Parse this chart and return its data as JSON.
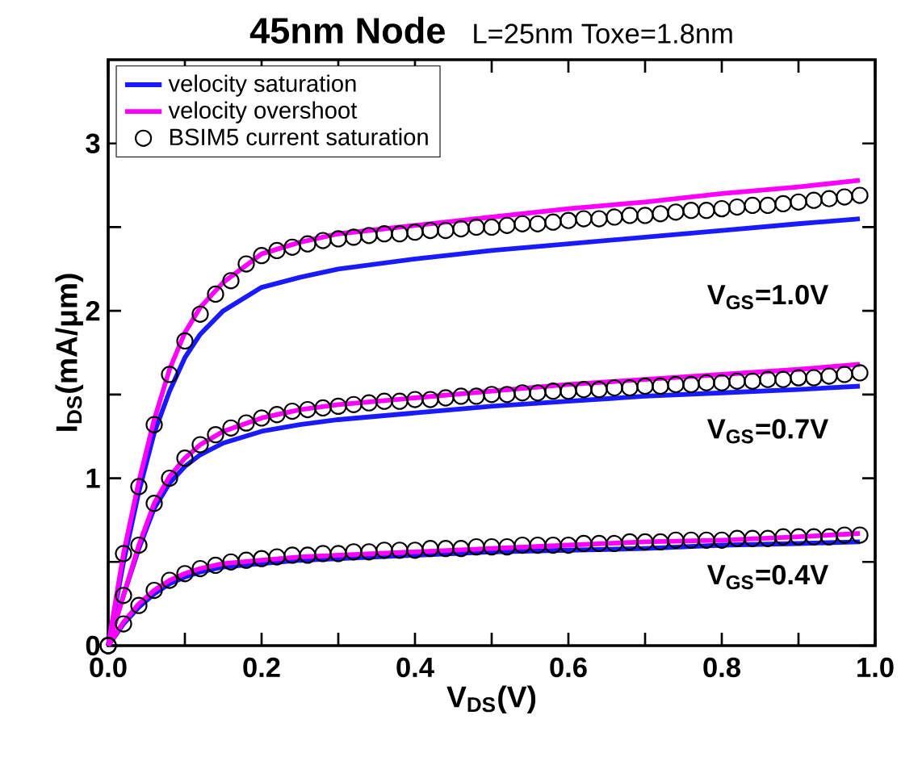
{
  "chart_data": {
    "type": "line",
    "title": "45nm Node",
    "subtitle": "L=25nm  Toxe=1.8nm",
    "xlabel": "V$_{DS}$(V)",
    "ylabel": "I$_{DS}$(mA/μm)",
    "xlim": [
      0,
      1
    ],
    "ylim": [
      0,
      3.5
    ],
    "xticks": [
      {
        "value": 0,
        "label": "0.0"
      },
      {
        "value": 0.1,
        "label": null
      },
      0.2,
      {
        "value": 0.3,
        "label": null
      },
      0.4,
      {
        "value": 0.5,
        "label": null
      },
      0.6,
      {
        "value": 0.7,
        "label": null
      },
      0.8,
      {
        "value": 0.9,
        "label": null
      },
      {
        "value": 1,
        "label": "1.0"
      }
    ],
    "yticks": [
      0,
      {
        "value": 0.5,
        "label": null
      },
      1,
      {
        "value": 1.5,
        "label": null
      },
      2,
      {
        "value": 2.5,
        "label": null
      },
      3
    ],
    "legend": "top left",
    "series": [
      {
        "name": "velocity saturation",
        "color": "#1a1aff",
        "x": [
          0,
          0.02,
          0.04,
          0.06,
          0.08,
          0.1,
          0.12,
          0.15,
          0.2,
          0.25,
          0.3,
          0.4,
          0.5,
          0.6,
          0.7,
          0.8,
          0.9,
          0.98
        ],
        "values": [
          0,
          0.5,
          0.92,
          1.27,
          1.52,
          1.72,
          1.86,
          2.0,
          2.14,
          2.2,
          2.25,
          2.31,
          2.36,
          2.4,
          2.44,
          2.48,
          2.52,
          2.55
        ]
      },
      {
        "name": "velocity overshoot",
        "color": "#ff00ff",
        "x": [
          0,
          0.02,
          0.04,
          0.06,
          0.08,
          0.1,
          0.12,
          0.15,
          0.2,
          0.25,
          0.3,
          0.4,
          0.5,
          0.6,
          0.7,
          0.8,
          0.9,
          0.98
        ],
        "values": [
          0,
          0.55,
          0.98,
          1.35,
          1.65,
          1.87,
          2.02,
          2.17,
          2.34,
          2.41,
          2.46,
          2.51,
          2.56,
          2.61,
          2.65,
          2.7,
          2.74,
          2.78
        ]
      },
      {
        "name": "BSIM5 current saturation",
        "type": "scatter",
        "marker": "circle",
        "color": "#000000",
        "x": [
          0,
          0.02,
          0.04,
          0.06,
          0.08,
          0.1,
          0.12,
          0.14,
          0.16,
          0.18,
          0.2,
          0.22,
          0.24,
          0.26,
          0.28,
          0.3,
          0.32,
          0.34,
          0.36,
          0.38,
          0.4,
          0.42,
          0.44,
          0.46,
          0.48,
          0.5,
          0.52,
          0.54,
          0.56,
          0.58,
          0.6,
          0.62,
          0.64,
          0.66,
          0.68,
          0.7,
          0.72,
          0.74,
          0.76,
          0.78,
          0.8,
          0.82,
          0.84,
          0.86,
          0.88,
          0.9,
          0.92,
          0.94,
          0.96,
          0.98
        ],
        "values": [
          0,
          0.55,
          0.95,
          1.32,
          1.62,
          1.82,
          1.98,
          2.1,
          2.18,
          2.28,
          2.33,
          2.36,
          2.38,
          2.4,
          2.42,
          2.43,
          2.44,
          2.45,
          2.46,
          2.46,
          2.47,
          2.48,
          2.48,
          2.49,
          2.5,
          2.5,
          2.51,
          2.52,
          2.52,
          2.53,
          2.54,
          2.55,
          2.55,
          2.56,
          2.57,
          2.57,
          2.58,
          2.59,
          2.6,
          2.6,
          2.61,
          2.62,
          2.63,
          2.63,
          2.64,
          2.65,
          2.66,
          2.67,
          2.68,
          2.69
        ]
      },
      {
        "color": "#1a1aff",
        "x": [
          0,
          0.02,
          0.04,
          0.06,
          0.08,
          0.1,
          0.12,
          0.15,
          0.2,
          0.25,
          0.3,
          0.4,
          0.5,
          0.6,
          0.7,
          0.8,
          0.9,
          0.98
        ],
        "values": [
          0,
          0.3,
          0.58,
          0.82,
          0.97,
          1.07,
          1.14,
          1.21,
          1.28,
          1.32,
          1.35,
          1.39,
          1.43,
          1.46,
          1.49,
          1.51,
          1.53,
          1.55
        ]
      },
      {
        "color": "#ff00ff",
        "x": [
          0,
          0.02,
          0.04,
          0.06,
          0.08,
          0.1,
          0.12,
          0.15,
          0.2,
          0.25,
          0.3,
          0.4,
          0.5,
          0.6,
          0.7,
          0.8,
          0.9,
          0.98
        ],
        "values": [
          0,
          0.3,
          0.6,
          0.85,
          1.01,
          1.12,
          1.2,
          1.28,
          1.36,
          1.41,
          1.44,
          1.48,
          1.52,
          1.56,
          1.59,
          1.62,
          1.65,
          1.68
        ]
      },
      {
        "type": "scatter",
        "marker": "circle",
        "color": "#000000",
        "x": [
          0,
          0.02,
          0.04,
          0.06,
          0.08,
          0.1,
          0.12,
          0.14,
          0.16,
          0.18,
          0.2,
          0.22,
          0.24,
          0.26,
          0.28,
          0.3,
          0.32,
          0.34,
          0.36,
          0.38,
          0.4,
          0.42,
          0.44,
          0.46,
          0.48,
          0.5,
          0.52,
          0.54,
          0.56,
          0.58,
          0.6,
          0.62,
          0.64,
          0.66,
          0.68,
          0.7,
          0.72,
          0.74,
          0.76,
          0.78,
          0.8,
          0.82,
          0.84,
          0.86,
          0.88,
          0.9,
          0.92,
          0.94,
          0.96,
          0.98
        ],
        "values": [
          0,
          0.3,
          0.6,
          0.85,
          1.0,
          1.12,
          1.2,
          1.26,
          1.3,
          1.33,
          1.36,
          1.38,
          1.4,
          1.41,
          1.42,
          1.43,
          1.44,
          1.45,
          1.46,
          1.46,
          1.47,
          1.47,
          1.48,
          1.49,
          1.49,
          1.5,
          1.5,
          1.51,
          1.51,
          1.52,
          1.52,
          1.53,
          1.53,
          1.54,
          1.54,
          1.55,
          1.55,
          1.56,
          1.56,
          1.57,
          1.57,
          1.58,
          1.58,
          1.59,
          1.59,
          1.6,
          1.6,
          1.61,
          1.62,
          1.63
        ]
      },
      {
        "color": "#1a1aff",
        "x": [
          0,
          0.02,
          0.04,
          0.06,
          0.08,
          0.1,
          0.12,
          0.15,
          0.2,
          0.25,
          0.3,
          0.4,
          0.5,
          0.6,
          0.7,
          0.8,
          0.9,
          0.98
        ],
        "values": [
          0,
          0.13,
          0.23,
          0.31,
          0.37,
          0.41,
          0.44,
          0.47,
          0.49,
          0.51,
          0.52,
          0.54,
          0.56,
          0.57,
          0.58,
          0.6,
          0.61,
          0.62
        ]
      },
      {
        "color": "#ff00ff",
        "x": [
          0,
          0.02,
          0.04,
          0.06,
          0.08,
          0.1,
          0.12,
          0.15,
          0.2,
          0.25,
          0.3,
          0.4,
          0.5,
          0.6,
          0.7,
          0.8,
          0.9,
          0.98
        ],
        "values": [
          0,
          0.14,
          0.25,
          0.33,
          0.39,
          0.43,
          0.46,
          0.49,
          0.51,
          0.53,
          0.54,
          0.56,
          0.58,
          0.6,
          0.62,
          0.63,
          0.65,
          0.67
        ]
      },
      {
        "type": "scatter",
        "marker": "circle",
        "color": "#000000",
        "x": [
          0,
          0.02,
          0.04,
          0.06,
          0.08,
          0.1,
          0.12,
          0.14,
          0.16,
          0.18,
          0.2,
          0.22,
          0.24,
          0.26,
          0.28,
          0.3,
          0.32,
          0.34,
          0.36,
          0.38,
          0.4,
          0.42,
          0.44,
          0.46,
          0.48,
          0.5,
          0.52,
          0.54,
          0.56,
          0.58,
          0.6,
          0.62,
          0.64,
          0.66,
          0.68,
          0.7,
          0.72,
          0.74,
          0.76,
          0.78,
          0.8,
          0.82,
          0.84,
          0.86,
          0.88,
          0.9,
          0.92,
          0.94,
          0.96,
          0.98
        ],
        "values": [
          0,
          0.13,
          0.24,
          0.33,
          0.39,
          0.43,
          0.46,
          0.48,
          0.5,
          0.51,
          0.52,
          0.53,
          0.54,
          0.54,
          0.55,
          0.55,
          0.56,
          0.56,
          0.57,
          0.57,
          0.57,
          0.58,
          0.58,
          0.58,
          0.59,
          0.59,
          0.59,
          0.6,
          0.6,
          0.6,
          0.6,
          0.61,
          0.61,
          0.61,
          0.62,
          0.62,
          0.62,
          0.63,
          0.63,
          0.63,
          0.63,
          0.64,
          0.64,
          0.64,
          0.65,
          0.65,
          0.65,
          0.65,
          0.66,
          0.66
        ]
      }
    ],
    "annotations": [
      "V$_{GS}$=1.0V",
      "V$_{GS}$=0.7V",
      "V$_{GS}$=0.4V"
    ]
  }
}
